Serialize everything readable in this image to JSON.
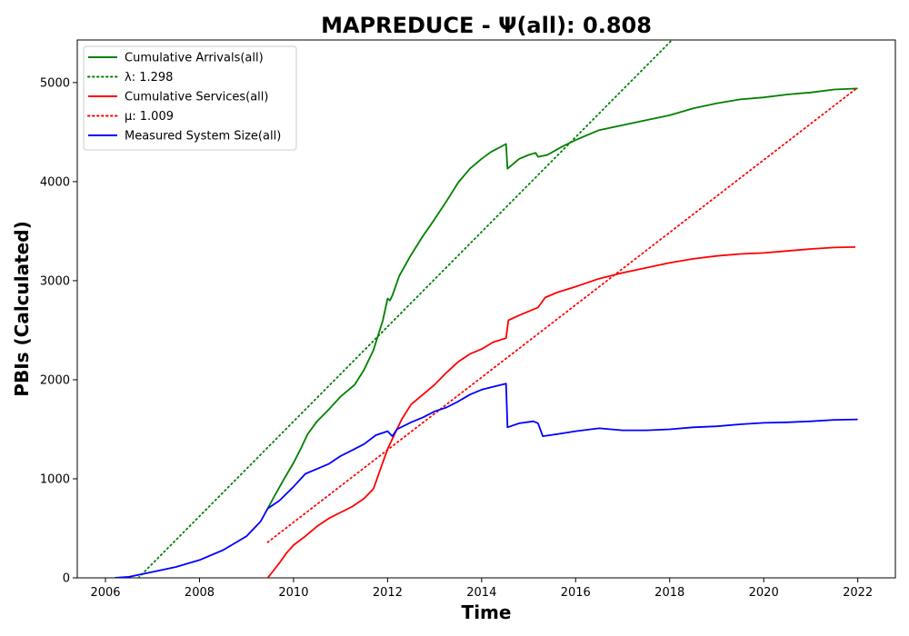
{
  "chart_data": {
    "type": "line",
    "title": "MAPREDUCE -  Ψ(all): 0.808",
    "xlabel": "Time",
    "ylabel": "PBIs (Calculated)",
    "xlim": [
      2005.4,
      2022.8
    ],
    "ylim": [
      0,
      5430
    ],
    "x_ticks": [
      2006,
      2008,
      2010,
      2012,
      2014,
      2016,
      2018,
      2020,
      2022
    ],
    "y_ticks": [
      0,
      1000,
      2000,
      3000,
      4000,
      5000
    ],
    "grid": false,
    "legend_position": "top-left",
    "series": [
      {
        "name": "Cumulative Arrivals(all)",
        "style": "solid",
        "color": "#008000",
        "points": [
          [
            2009.45,
            700
          ],
          [
            2009.6,
            830
          ],
          [
            2009.8,
            1000
          ],
          [
            2010.0,
            1160
          ],
          [
            2010.15,
            1300
          ],
          [
            2010.3,
            1450
          ],
          [
            2010.5,
            1580
          ],
          [
            2010.75,
            1700
          ],
          [
            2011.0,
            1830
          ],
          [
            2011.3,
            1950
          ],
          [
            2011.5,
            2100
          ],
          [
            2011.7,
            2300
          ],
          [
            2011.9,
            2600
          ],
          [
            2012.0,
            2820
          ],
          [
            2012.05,
            2800
          ],
          [
            2012.1,
            2850
          ],
          [
            2012.25,
            3050
          ],
          [
            2012.5,
            3260
          ],
          [
            2012.75,
            3450
          ],
          [
            2013.0,
            3620
          ],
          [
            2013.25,
            3800
          ],
          [
            2013.5,
            3990
          ],
          [
            2013.75,
            4130
          ],
          [
            2014.0,
            4230
          ],
          [
            2014.2,
            4300
          ],
          [
            2014.52,
            4380
          ],
          [
            2014.55,
            4130
          ],
          [
            2014.8,
            4230
          ],
          [
            2015.0,
            4270
          ],
          [
            2015.15,
            4290
          ],
          [
            2015.2,
            4250
          ],
          [
            2015.4,
            4270
          ],
          [
            2015.7,
            4350
          ],
          [
            2016.0,
            4420
          ],
          [
            2016.5,
            4520
          ],
          [
            2017.0,
            4570
          ],
          [
            2017.5,
            4620
          ],
          [
            2018.0,
            4670
          ],
          [
            2018.5,
            4740
          ],
          [
            2019.0,
            4790
          ],
          [
            2019.5,
            4830
          ],
          [
            2020.0,
            4850
          ],
          [
            2020.5,
            4880
          ],
          [
            2021.0,
            4900
          ],
          [
            2021.5,
            4930
          ],
          [
            2022.0,
            4940
          ]
        ]
      },
      {
        "name": "λ: 1.298",
        "style": "dotted",
        "color": "#008000",
        "points": [
          [
            2006.7,
            0
          ],
          [
            2018.05,
            5430
          ]
        ]
      },
      {
        "name": "Cumulative Services(all)",
        "style": "solid",
        "color": "#ff0000",
        "points": [
          [
            2009.45,
            0
          ],
          [
            2009.55,
            60
          ],
          [
            2009.7,
            150
          ],
          [
            2009.85,
            250
          ],
          [
            2010.0,
            330
          ],
          [
            2010.25,
            420
          ],
          [
            2010.5,
            520
          ],
          [
            2010.75,
            600
          ],
          [
            2011.0,
            660
          ],
          [
            2011.25,
            720
          ],
          [
            2011.5,
            800
          ],
          [
            2011.7,
            900
          ],
          [
            2011.85,
            1100
          ],
          [
            2012.0,
            1300
          ],
          [
            2012.15,
            1450
          ],
          [
            2012.3,
            1600
          ],
          [
            2012.5,
            1750
          ],
          [
            2012.75,
            1850
          ],
          [
            2013.0,
            1950
          ],
          [
            2013.25,
            2070
          ],
          [
            2013.5,
            2180
          ],
          [
            2013.75,
            2260
          ],
          [
            2014.0,
            2310
          ],
          [
            2014.25,
            2380
          ],
          [
            2014.52,
            2420
          ],
          [
            2014.57,
            2600
          ],
          [
            2014.8,
            2650
          ],
          [
            2015.0,
            2690
          ],
          [
            2015.2,
            2730
          ],
          [
            2015.35,
            2830
          ],
          [
            2015.6,
            2880
          ],
          [
            2016.0,
            2940
          ],
          [
            2016.5,
            3020
          ],
          [
            2017.0,
            3080
          ],
          [
            2017.5,
            3130
          ],
          [
            2018.0,
            3180
          ],
          [
            2018.5,
            3220
          ],
          [
            2019.0,
            3250
          ],
          [
            2019.5,
            3270
          ],
          [
            2020.0,
            3280
          ],
          [
            2020.5,
            3300
          ],
          [
            2021.0,
            3320
          ],
          [
            2021.5,
            3335
          ],
          [
            2021.95,
            3340
          ]
        ]
      },
      {
        "name": "μ: 1.009",
        "style": "dotted",
        "color": "#ff0000",
        "points": [
          [
            2009.45,
            360
          ],
          [
            2022.0,
            4950
          ]
        ]
      },
      {
        "name": "Measured System Size(all)",
        "style": "solid",
        "color": "#0000ff",
        "points": [
          [
            2006.2,
            0
          ],
          [
            2006.5,
            10
          ],
          [
            2007.0,
            60
          ],
          [
            2007.5,
            110
          ],
          [
            2008.0,
            180
          ],
          [
            2008.5,
            280
          ],
          [
            2009.0,
            420
          ],
          [
            2009.3,
            570
          ],
          [
            2009.45,
            700
          ],
          [
            2009.7,
            780
          ],
          [
            2010.0,
            920
          ],
          [
            2010.25,
            1050
          ],
          [
            2010.5,
            1100
          ],
          [
            2010.75,
            1150
          ],
          [
            2011.0,
            1230
          ],
          [
            2011.25,
            1290
          ],
          [
            2011.5,
            1350
          ],
          [
            2011.75,
            1440
          ],
          [
            2012.0,
            1480
          ],
          [
            2012.1,
            1430
          ],
          [
            2012.2,
            1500
          ],
          [
            2012.5,
            1570
          ],
          [
            2012.75,
            1620
          ],
          [
            2013.0,
            1680
          ],
          [
            2013.25,
            1720
          ],
          [
            2013.5,
            1780
          ],
          [
            2013.75,
            1850
          ],
          [
            2014.0,
            1900
          ],
          [
            2014.25,
            1930
          ],
          [
            2014.52,
            1960
          ],
          [
            2014.55,
            1520
          ],
          [
            2014.8,
            1560
          ],
          [
            2015.1,
            1580
          ],
          [
            2015.2,
            1560
          ],
          [
            2015.3,
            1430
          ],
          [
            2015.6,
            1450
          ],
          [
            2016.0,
            1480
          ],
          [
            2016.5,
            1510
          ],
          [
            2017.0,
            1490
          ],
          [
            2017.5,
            1490
          ],
          [
            2018.0,
            1500
          ],
          [
            2018.5,
            1520
          ],
          [
            2019.0,
            1530
          ],
          [
            2019.5,
            1550
          ],
          [
            2020.0,
            1565
          ],
          [
            2020.5,
            1570
          ],
          [
            2021.0,
            1580
          ],
          [
            2021.5,
            1595
          ],
          [
            2022.0,
            1600
          ]
        ]
      }
    ]
  }
}
